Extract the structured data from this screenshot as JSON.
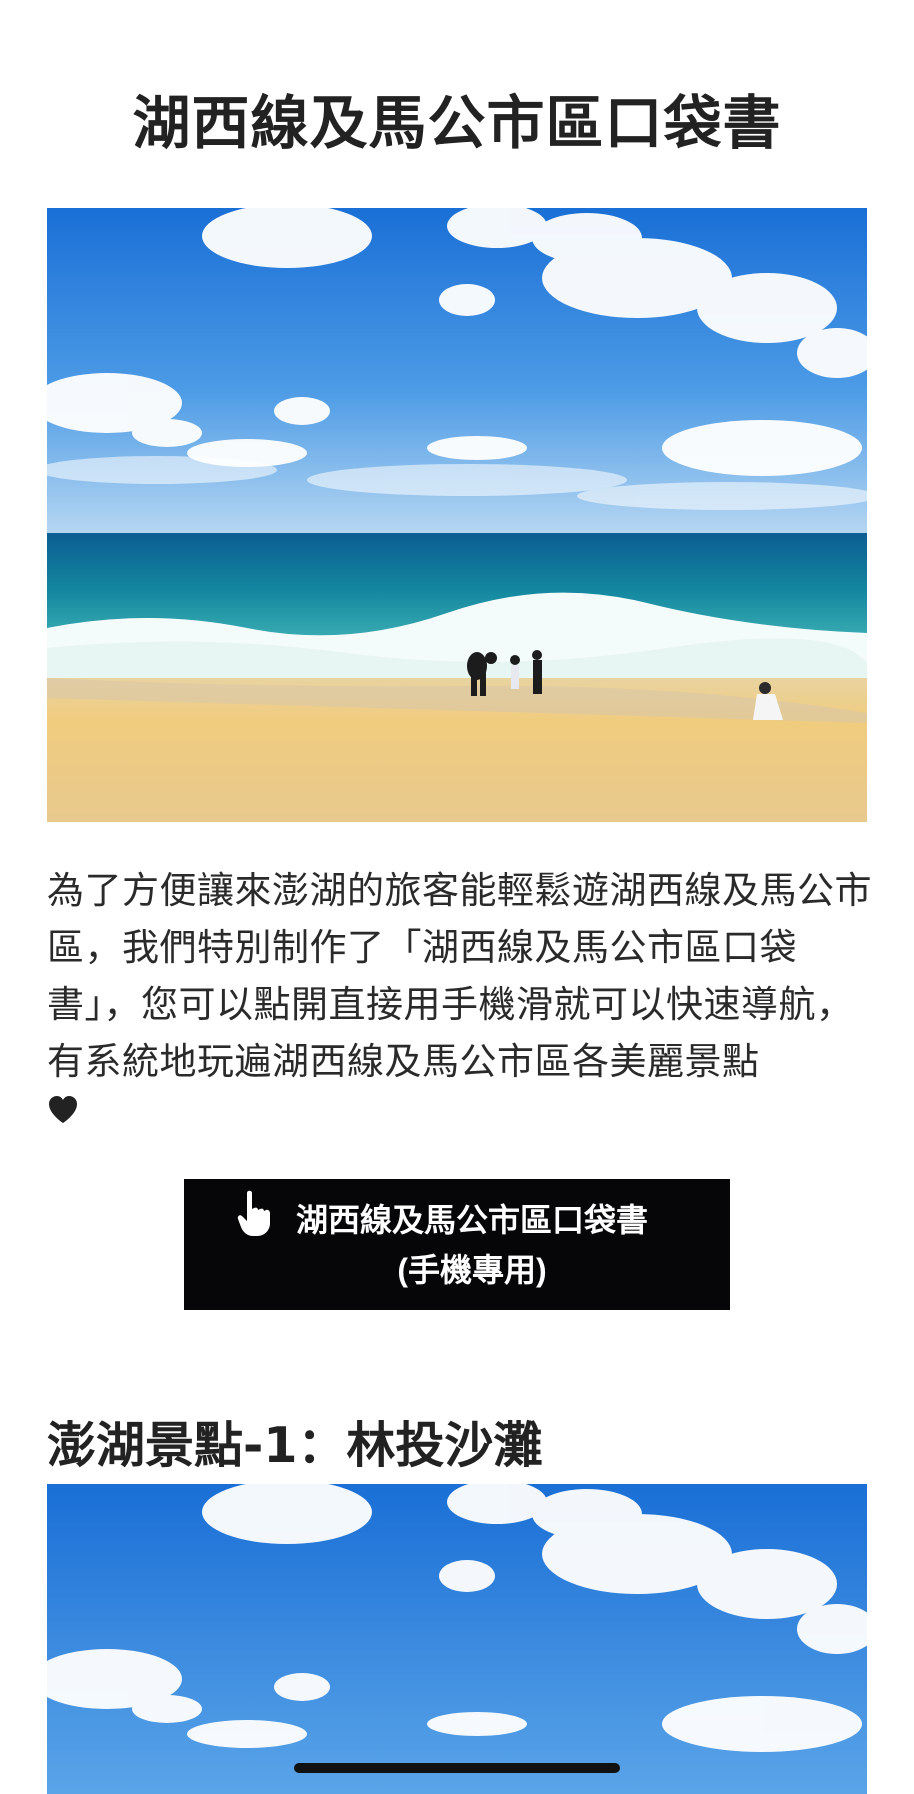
{
  "page": {
    "title": "湖西線及馬公市區口袋書"
  },
  "intro": {
    "text": "為了方便讓來澎湖的旅客能輕鬆遊湖西線及馬公市區，我們特別制作了「湖西線及馬公市區口袋書」，您可以點開直接用手機滑就可以快速導航，有系統地玩遍湖西線及馬公市區各美麗景點",
    "trailing_icon": "heart-icon"
  },
  "cta": {
    "icon": "pointing-hand-icon",
    "line1": "湖西線及馬公市區口袋書",
    "line2": "(手機專用)"
  },
  "section": {
    "heading": "澎湖景點-1：林投沙灘"
  },
  "images": {
    "hero": "beach-photo",
    "section_photo": "beach-photo"
  },
  "colors": {
    "button_bg": "#060608",
    "text": "#222222",
    "background": "#ffffff"
  }
}
